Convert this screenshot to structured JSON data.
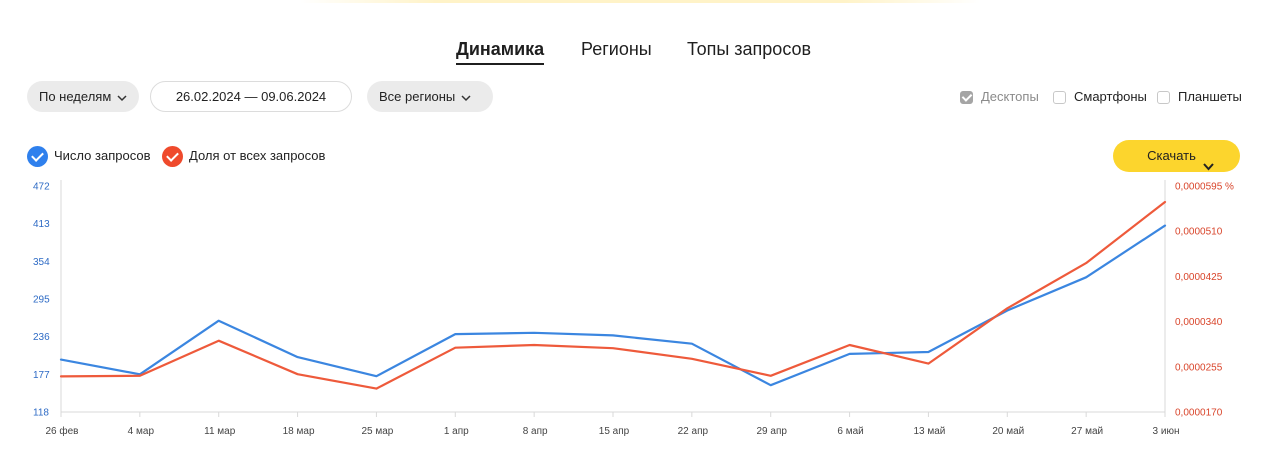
{
  "tabs": [
    {
      "label": "Динамика",
      "active": true
    },
    {
      "label": "Регионы",
      "active": false
    },
    {
      "label": "Топы запросов",
      "active": false
    }
  ],
  "filters": {
    "period_label": "По неделям",
    "date_range": "26.02.2024 — 09.06.2024",
    "region_label": "Все регионы"
  },
  "devices": [
    {
      "label": "Десктопы",
      "checked": true
    },
    {
      "label": "Смартфоны",
      "checked": false
    },
    {
      "label": "Планшеты",
      "checked": false
    }
  ],
  "legend": [
    {
      "label": "Число запросов",
      "color": "#2f80ed"
    },
    {
      "label": "Доля от всех запросов",
      "color": "#ef4a2c"
    }
  ],
  "download_label": "Скачать",
  "icons": {
    "chevron": "chevron-down-icon",
    "check": "check-icon"
  },
  "chart_data": {
    "type": "line",
    "categories": [
      "26 фев",
      "4 мар",
      "11 мар",
      "18 мар",
      "25 мар",
      "1 апр",
      "8 апр",
      "15 апр",
      "22 апр",
      "29 апр",
      "6 май",
      "13 май",
      "20 май",
      "27 май",
      "3 июн"
    ],
    "left_axis": {
      "ticks": [
        "118",
        "177",
        "236",
        "295",
        "354",
        "413",
        "472"
      ],
      "range": [
        118,
        472
      ],
      "color": "#2e6bc5"
    },
    "right_axis": {
      "ticks": [
        "0,0000170",
        "0,0000255",
        "0,0000340",
        "0,0000425",
        "0,0000510",
        "0,0000595 %"
      ],
      "range": [
        1.7e-05,
        5.95e-05
      ],
      "color": "#d9452b"
    },
    "series": [
      {
        "name": "Число запросов",
        "axis": "left",
        "color": "#3b86e0",
        "values": [
          200,
          177,
          261,
          204,
          174,
          240,
          242,
          238,
          225,
          160,
          209,
          212,
          277,
          329,
          410
        ]
      },
      {
        "name": "Доля от всех запросов",
        "axis": "right",
        "color": "#ee5a3b",
        "values": [
          2.37e-05,
          2.38e-05,
          3.04e-05,
          2.41e-05,
          2.14e-05,
          2.91e-05,
          2.96e-05,
          2.9e-05,
          2.7e-05,
          2.38e-05,
          2.96e-05,
          2.61e-05,
          3.65e-05,
          4.5e-05,
          5.65e-05
        ]
      }
    ],
    "grid": false,
    "legend_position": "top-left"
  }
}
